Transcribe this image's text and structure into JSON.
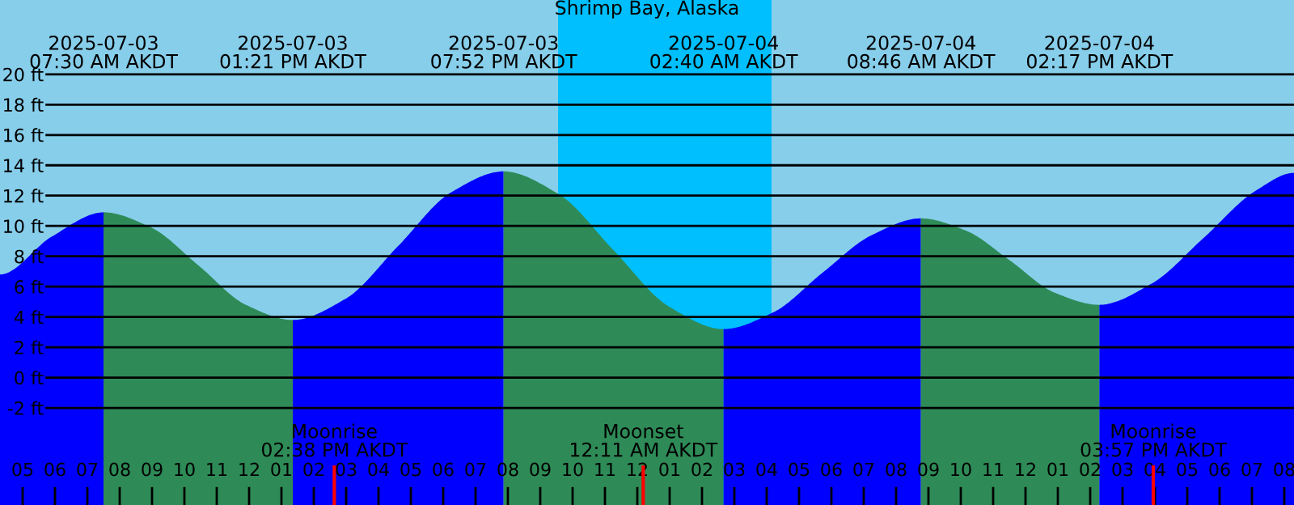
{
  "chart_data": {
    "type": "area",
    "title": "Shrimp Bay, Alaska",
    "series": [
      {
        "color": "#0000ff",
        "x": [
          "2025-07-03T04:18",
          "2025-07-03T05:54",
          "2025-07-03T07:30"
        ],
        "values": [
          6.8,
          9.3,
          10.9
        ]
      },
      {
        "color": "#2e8b57",
        "x": [
          "2025-07-03T07:30",
          "2025-07-03T08:58",
          "2025-07-03T10:26",
          "2025-07-03T11:54",
          "2025-07-03T13:21"
        ],
        "values": [
          10.9,
          9.9,
          7.4,
          4.8,
          3.8
        ]
      },
      {
        "color": "#0000ff",
        "x": [
          "2025-07-03T13:21",
          "2025-07-03T14:59",
          "2025-07-03T16:37",
          "2025-07-03T18:14",
          "2025-07-03T19:52"
        ],
        "values": [
          3.8,
          5.2,
          8.7,
          12.2,
          13.6
        ]
      },
      {
        "color": "#2e8b57",
        "x": [
          "2025-07-03T19:52",
          "2025-07-03T21:34",
          "2025-07-03T23:16",
          "2025-07-04T00:58",
          "2025-07-04T02:40"
        ],
        "values": [
          13.6,
          12.1,
          8.4,
          4.7,
          3.2
        ]
      },
      {
        "color": "#0000ff",
        "x": [
          "2025-07-04T02:40",
          "2025-07-04T04:12",
          "2025-07-04T05:43",
          "2025-07-04T07:15",
          "2025-07-04T08:46"
        ],
        "values": [
          3.2,
          4.3,
          6.9,
          9.4,
          10.5
        ]
      },
      {
        "color": "#2e8b57",
        "x": [
          "2025-07-04T08:46",
          "2025-07-04T10:09",
          "2025-07-04T11:32",
          "2025-07-04T12:54",
          "2025-07-04T14:17"
        ],
        "values": [
          10.5,
          9.7,
          7.7,
          5.6,
          4.8
        ]
      },
      {
        "color": "#0000ff",
        "x": [
          "2025-07-04T14:17",
          "2025-07-04T15:54",
          "2025-07-04T17:30",
          "2025-07-04T19:06",
          "2025-07-04T20:18"
        ],
        "values": [
          4.8,
          6.2,
          9.2,
          12.3,
          13.5
        ]
      }
    ],
    "xlim": [
      "2025-07-03T04:18",
      "2025-07-04T20:18"
    ],
    "xticks": [
      {
        "value": "2025-07-03T05:00",
        "label": "05"
      },
      {
        "value": "2025-07-03T06:00",
        "label": "06"
      },
      {
        "value": "2025-07-03T07:00",
        "label": "07"
      },
      {
        "value": "2025-07-03T08:00",
        "label": "08"
      },
      {
        "value": "2025-07-03T09:00",
        "label": "09"
      },
      {
        "value": "2025-07-03T10:00",
        "label": "10"
      },
      {
        "value": "2025-07-03T11:00",
        "label": "11"
      },
      {
        "value": "2025-07-03T12:00",
        "label": "12"
      },
      {
        "value": "2025-07-03T13:00",
        "label": "01"
      },
      {
        "value": "2025-07-03T14:00",
        "label": "02"
      },
      {
        "value": "2025-07-03T15:00",
        "label": "03"
      },
      {
        "value": "2025-07-03T16:00",
        "label": "04"
      },
      {
        "value": "2025-07-03T17:00",
        "label": "05"
      },
      {
        "value": "2025-07-03T18:00",
        "label": "06"
      },
      {
        "value": "2025-07-03T19:00",
        "label": "07"
      },
      {
        "value": "2025-07-03T20:00",
        "label": "08"
      },
      {
        "value": "2025-07-03T21:00",
        "label": "09"
      },
      {
        "value": "2025-07-03T22:00",
        "label": "10"
      },
      {
        "value": "2025-07-03T23:00",
        "label": "11"
      },
      {
        "value": "2025-07-04T00:00",
        "label": "12"
      },
      {
        "value": "2025-07-04T01:00",
        "label": "01"
      },
      {
        "value": "2025-07-04T02:00",
        "label": "02"
      },
      {
        "value": "2025-07-04T03:00",
        "label": "03"
      },
      {
        "value": "2025-07-04T04:00",
        "label": "04"
      },
      {
        "value": "2025-07-04T05:00",
        "label": "05"
      },
      {
        "value": "2025-07-04T06:00",
        "label": "06"
      },
      {
        "value": "2025-07-04T07:00",
        "label": "07"
      },
      {
        "value": "2025-07-04T08:00",
        "label": "08"
      },
      {
        "value": "2025-07-04T09:00",
        "label": "09"
      },
      {
        "value": "2025-07-04T10:00",
        "label": "10"
      },
      {
        "value": "2025-07-04T11:00",
        "label": "11"
      },
      {
        "value": "2025-07-04T12:00",
        "label": "12"
      },
      {
        "value": "2025-07-04T13:00",
        "label": "01"
      },
      {
        "value": "2025-07-04T14:00",
        "label": "02"
      },
      {
        "value": "2025-07-04T15:00",
        "label": "03"
      },
      {
        "value": "2025-07-04T16:00",
        "label": "04"
      },
      {
        "value": "2025-07-04T17:00",
        "label": "05"
      },
      {
        "value": "2025-07-04T18:00",
        "label": "06"
      },
      {
        "value": "2025-07-04T19:00",
        "label": "07"
      },
      {
        "value": "2025-07-04T20:00",
        "label": "08"
      }
    ],
    "ylim": [
      -8.4,
      24.9
    ],
    "yticks": [
      {
        "value": -2,
        "label": "-2 ft"
      },
      {
        "value": 0,
        "label": "0 ft"
      },
      {
        "value": 2,
        "label": "2 ft"
      },
      {
        "value": 4,
        "label": "4 ft"
      },
      {
        "value": 6,
        "label": "6 ft"
      },
      {
        "value": 8,
        "label": "8 ft"
      },
      {
        "value": 10,
        "label": "10 ft"
      },
      {
        "value": 12,
        "label": "12 ft"
      },
      {
        "value": 14,
        "label": "14 ft"
      },
      {
        "value": 16,
        "label": "16 ft"
      },
      {
        "value": 18,
        "label": "18 ft"
      },
      {
        "value": 20,
        "label": "20 ft"
      }
    ],
    "grid": "y",
    "bands": [
      {
        "axis": "x",
        "from": "2025-07-03T21:33",
        "to": "2025-07-04T04:09",
        "color": "#00bfff"
      }
    ],
    "ref_lines": [
      {
        "axis": "x",
        "value": "2025-07-03T14:38",
        "label": "Moonrise\n02:38 PM AKDT",
        "color": "#ff0000"
      },
      {
        "axis": "x",
        "value": "2025-07-04T00:11",
        "label": "Moonset\n12:11 AM AKDT",
        "color": "#ff0000"
      },
      {
        "axis": "x",
        "value": "2025-07-04T15:57",
        "label": "Moonrise\n03:57 PM AKDT",
        "color": "#ff0000"
      }
    ],
    "annotations": [
      "2025-07-03\n07:30 AM AKDT",
      "2025-07-03\n01:21 PM AKDT",
      "2025-07-03\n07:52 PM AKDT",
      "2025-07-04\n02:40 AM AKDT",
      "2025-07-04\n08:46 AM AKDT",
      "2025-07-04\n02:17 PM AKDT"
    ]
  }
}
